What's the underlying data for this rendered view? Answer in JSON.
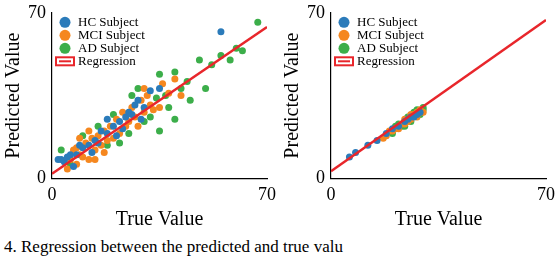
{
  "caption": "4. Regression between the predicted and true valu",
  "chart_data": [
    {
      "type": "scatter",
      "x_label": "True Value",
      "y_label": "Predicted Value",
      "xlim": [
        0,
        70
      ],
      "ylim": [
        0,
        70
      ],
      "xticks": [
        0,
        70
      ],
      "yticks": [
        0,
        70
      ],
      "grid": false,
      "legend": "upper left",
      "series": [
        {
          "name": "HC Subject",
          "color": "#2b7bba",
          "marker": "circle",
          "x": [
            2,
            3,
            4,
            5,
            6,
            8,
            10,
            12,
            14,
            15,
            16,
            18,
            20,
            22,
            24,
            25,
            26,
            28,
            30,
            32,
            18,
            21,
            27,
            35,
            55,
            7,
            9,
            13,
            23,
            29
          ],
          "values": [
            8,
            8,
            7,
            9,
            10,
            10,
            13,
            14,
            16,
            15,
            20,
            19,
            22,
            24,
            26,
            28,
            27,
            33,
            30,
            37,
            25,
            18,
            31,
            38,
            62,
            5,
            14,
            11,
            21,
            25
          ]
        },
        {
          "name": "MCI Subject",
          "color": "#f5871f",
          "marker": "circle",
          "x": [
            5,
            6,
            7,
            8,
            9,
            10,
            11,
            12,
            13,
            14,
            15,
            16,
            17,
            18,
            19,
            20,
            21,
            22,
            23,
            24,
            25,
            26,
            27,
            28,
            29,
            30,
            31,
            32,
            33,
            35,
            36,
            38,
            40,
            12,
            9,
            17,
            42,
            30,
            8,
            14
          ],
          "values": [
            4,
            8,
            12,
            6,
            10,
            9,
            15,
            8,
            17,
            12,
            18,
            14,
            11,
            16,
            22,
            17,
            25,
            19,
            28,
            22,
            24,
            30,
            26,
            22,
            33,
            28,
            35,
            31,
            29,
            30,
            40,
            36,
            42,
            20,
            17,
            20,
            35,
            38,
            13,
            8
          ]
        },
        {
          "name": "AD Subject",
          "color": "#3cae4a",
          "marker": "circle",
          "x": [
            3,
            6,
            10,
            15,
            18,
            20,
            22,
            25,
            28,
            30,
            32,
            34,
            35,
            37,
            38,
            40,
            42,
            44,
            45,
            48,
            50,
            52,
            55,
            58,
            60,
            62,
            35,
            40,
            26,
            67
          ],
          "values": [
            12,
            6,
            18,
            22,
            14,
            27,
            15,
            19,
            38,
            24,
            26,
            34,
            44,
            35,
            30,
            45,
            38,
            41,
            33,
            50,
            38,
            48,
            52,
            50,
            55,
            54,
            20,
            25,
            35,
            66
          ]
        },
        {
          "name": "Regression",
          "type": "line",
          "color": "#e8262b",
          "line_style": "solid",
          "x": [
            0,
            70
          ],
          "values": [
            2,
            64
          ]
        }
      ]
    },
    {
      "type": "scatter",
      "x_label": "True Value",
      "y_label": "Predicted Value",
      "xlim": [
        0,
        70
      ],
      "ylim": [
        0,
        70
      ],
      "xticks": [
        0,
        70
      ],
      "yticks": [
        0,
        70
      ],
      "grid": false,
      "legend": "upper left",
      "series": [
        {
          "name": "HC Subject",
          "color": "#2b7bba",
          "marker": "circle",
          "x": [
            6,
            8,
            12,
            15,
            18,
            20,
            22,
            24,
            25,
            26,
            27,
            28,
            29
          ],
          "values": [
            9,
            11,
            14,
            16,
            19,
            21,
            22,
            24,
            25,
            26,
            26,
            27,
            28
          ]
        },
        {
          "name": "MCI Subject",
          "color": "#f5871f",
          "marker": "circle",
          "x": [
            17,
            18,
            19,
            20,
            21,
            22,
            23,
            24,
            25,
            26,
            27,
            28,
            29,
            30,
            28,
            26,
            24
          ],
          "values": [
            17,
            18,
            20,
            20,
            21,
            21,
            23,
            23,
            24,
            25,
            27,
            28,
            29,
            28,
            26,
            27,
            25
          ]
        },
        {
          "name": "AD Subject",
          "color": "#3cae4a",
          "marker": "circle",
          "x": [
            20,
            22,
            23,
            25,
            26,
            27,
            28,
            29,
            30,
            30,
            24,
            21
          ],
          "values": [
            19,
            23,
            22,
            26,
            24,
            28,
            29,
            27,
            29,
            30,
            22,
            22
          ]
        },
        {
          "name": "Regression",
          "type": "line",
          "color": "#e8262b",
          "line_style": "solid",
          "x": [
            0,
            70
          ],
          "values": [
            3,
            67
          ]
        }
      ]
    }
  ]
}
